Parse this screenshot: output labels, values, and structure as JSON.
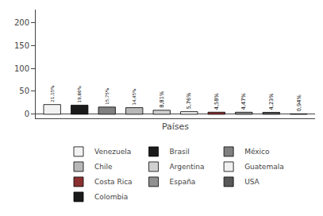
{
  "chart_data": {
    "type": "bar",
    "xlabel": "Países",
    "categories": [
      "Venezuela",
      "Brasil",
      "México",
      "Chile",
      "Argentina",
      "Guatemala",
      "Costa Rica",
      "España",
      "USA",
      "Colombia"
    ],
    "values": [
      21.15,
      19.86,
      15.75,
      14.45,
      8.81,
      5.76,
      4.58,
      4.47,
      4.23,
      0.94
    ],
    "value_labels": [
      "21,15%",
      "19,86%",
      "15,75%",
      "14,45%",
      "8,81%",
      "5,76%",
      "4,58%",
      "4,47%",
      "4,23%",
      "0,94%"
    ],
    "colors": [
      "#f2f2f2",
      "#1a1a1a",
      "#808080",
      "#b8b8b8",
      "#d0d0d0",
      "#f0f0f0",
      "#8b3030",
      "#909090",
      "#585858",
      "#1a1a1a"
    ],
    "data_labels": true,
    "ylim": [
      -8.8,
      228
    ],
    "yticks": [
      0,
      50,
      100,
      150,
      200
    ],
    "grid": false,
    "legend": "bottom",
    "tick_labels": "y"
  }
}
